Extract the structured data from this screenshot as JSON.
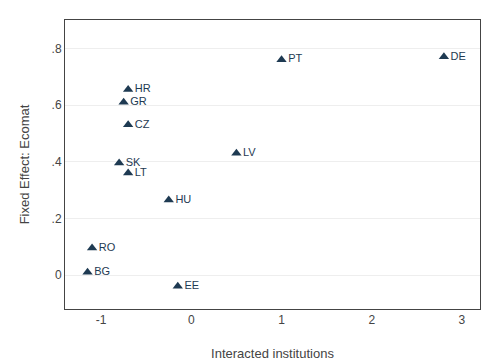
{
  "chart_data": {
    "type": "scatter",
    "x": [
      1.0,
      2.8,
      -0.7,
      -0.75,
      -0.7,
      0.5,
      -0.8,
      -0.7,
      -0.25,
      -1.1,
      -1.15,
      -0.15
    ],
    "values": [
      0.76,
      0.77,
      0.655,
      0.61,
      0.53,
      0.43,
      0.395,
      0.36,
      0.265,
      0.095,
      0.01,
      -0.04
    ],
    "labels": [
      "PT",
      "DE",
      "HR",
      "GR",
      "CZ",
      "LV",
      "SK",
      "LT",
      "HU",
      "RO",
      "BG",
      "EE"
    ],
    "color": "#1e3a52",
    "marker": "triangle-up",
    "xlabel": "Interacted institutions",
    "ylabel": "Fixed Effect: Ecomat",
    "xlim": [
      -1.4,
      3.2
    ],
    "ylim": [
      -0.12,
      0.9
    ],
    "xticks": [
      -1,
      0,
      1,
      2,
      3
    ],
    "yticks": [
      0,
      {
        "value": 0.2,
        "label": ".2"
      },
      {
        "value": 0.4,
        "label": ".4"
      },
      {
        "value": 0.6,
        "label": ".6"
      },
      {
        "value": 0.8,
        "label": ".8"
      }
    ],
    "grid": "y"
  }
}
